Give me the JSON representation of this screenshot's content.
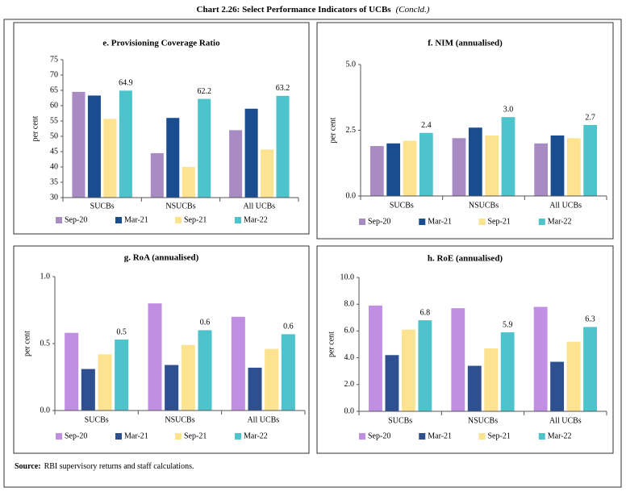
{
  "title": "Chart 2.26: Select Performance Indicators of  UCBs",
  "title_note": "(Concld.)",
  "source_label": "Source:",
  "source_text": "RBI supervisory returns and staff calculations.",
  "chart_data": [
    {
      "type": "bar",
      "title": "e. Provisioning Coverage Ratio",
      "ylabel": "per cent",
      "categories": [
        "SUCBs",
        "NSUCBs",
        "All UCBs"
      ],
      "ylim": [
        30,
        75
      ],
      "yticks": [
        30,
        35,
        40,
        45,
        50,
        55,
        60,
        65,
        70,
        75
      ],
      "series": [
        {
          "name": "Sep-20",
          "color": "#a98bc4",
          "values": [
            64.5,
            44.5,
            52.0
          ]
        },
        {
          "name": "Mar-21",
          "color": "#1a4d8f",
          "values": [
            63.3,
            56.0,
            59.0
          ]
        },
        {
          "name": "Sep-21",
          "color": "#fde38f",
          "values": [
            55.7,
            40.0,
            45.7
          ]
        },
        {
          "name": "Mar-22",
          "color": "#4dc4cb",
          "values": [
            64.9,
            62.2,
            63.2
          ],
          "value_labels": [
            "64.9",
            "62.2",
            "63.2"
          ]
        }
      ]
    },
    {
      "type": "bar",
      "title": "f. NIM (annualised)",
      "ylabel": "per cent",
      "categories": [
        "SUCBs",
        "NSUCBs",
        "All UCBs"
      ],
      "ylim": [
        0,
        5
      ],
      "yticks": [
        {
          "value": 0,
          "label": "0.0"
        },
        {
          "value": 2.5,
          "label": "2.5"
        },
        {
          "value": 5,
          "label": "5.0"
        }
      ],
      "series": [
        {
          "name": "Sep-20",
          "color": "#a98bc4",
          "values": [
            1.9,
            2.2,
            2.0
          ]
        },
        {
          "name": "Mar-21",
          "color": "#1a4d8f",
          "values": [
            2.0,
            2.6,
            2.3
          ]
        },
        {
          "name": "Sep-21",
          "color": "#fde38f",
          "values": [
            2.1,
            2.3,
            2.2
          ]
        },
        {
          "name": "Mar-22",
          "color": "#4dc4cb",
          "values": [
            2.4,
            3.0,
            2.7
          ],
          "value_labels": [
            "2.4",
            "3.0",
            "2.7"
          ]
        }
      ]
    },
    {
      "type": "bar",
      "title": "g. RoA (annualised)",
      "ylabel": "per cent",
      "categories": [
        "SUCBs",
        "NSUCBs",
        "All UCBs"
      ],
      "ylim": [
        0,
        1
      ],
      "yticks": [
        {
          "value": 0,
          "label": "0.0"
        },
        {
          "value": 0.5,
          "label": "0.5"
        },
        {
          "value": 1,
          "label": "1.0"
        }
      ],
      "series": [
        {
          "name": "Sep-20",
          "color": "#c08fe3",
          "values": [
            0.58,
            0.8,
            0.7
          ]
        },
        {
          "name": "Mar-21",
          "color": "#2e4f90",
          "values": [
            0.31,
            0.34,
            0.32
          ]
        },
        {
          "name": "Sep-21",
          "color": "#fde38f",
          "values": [
            0.42,
            0.49,
            0.46
          ]
        },
        {
          "name": "Mar-22",
          "color": "#4dc4cb",
          "values": [
            0.53,
            0.6,
            0.57
          ],
          "value_labels": [
            "0.5",
            "0.6",
            "0.6"
          ]
        }
      ]
    },
    {
      "type": "bar",
      "title": "h. RoE (annualised)",
      "ylabel": "per cent",
      "categories": [
        "SUCBs",
        "NSUCBs",
        "All UCBs"
      ],
      "ylim": [
        0,
        10
      ],
      "yticks": [
        {
          "value": 0,
          "label": "0.0"
        },
        {
          "value": 2,
          "label": "2.0"
        },
        {
          "value": 4,
          "label": "4.0"
        },
        {
          "value": 6,
          "label": "6.0"
        },
        {
          "value": 8,
          "label": "8.0"
        },
        {
          "value": 10,
          "label": "10.0"
        }
      ],
      "series": [
        {
          "name": "Sep-20",
          "color": "#c08fe3",
          "values": [
            7.9,
            7.7,
            7.8
          ]
        },
        {
          "name": "Mar-21",
          "color": "#2e4f90",
          "values": [
            4.2,
            3.4,
            3.7
          ]
        },
        {
          "name": "Sep-21",
          "color": "#fde38f",
          "values": [
            6.1,
            4.7,
            5.2
          ]
        },
        {
          "name": "Mar-22",
          "color": "#4dc4cb",
          "values": [
            6.8,
            5.9,
            6.3
          ],
          "value_labels": [
            "6.8",
            "5.9",
            "6.3"
          ]
        }
      ]
    }
  ]
}
